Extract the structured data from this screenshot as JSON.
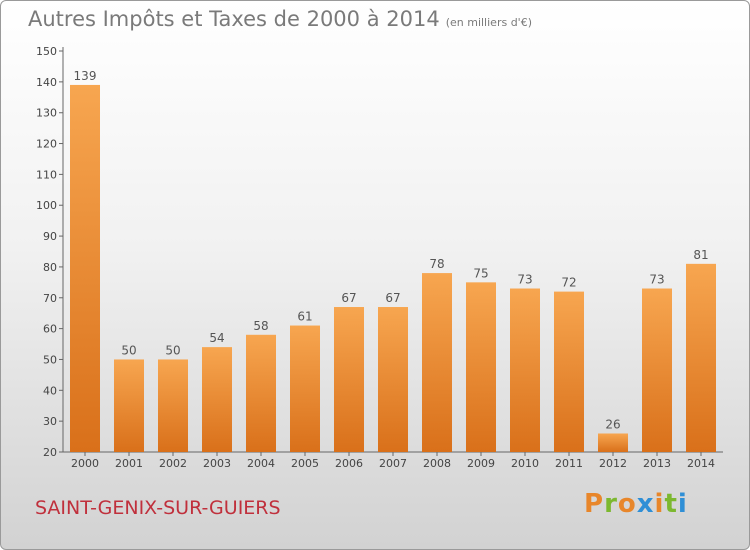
{
  "header": {
    "title": "Autres Impôts et Taxes de 2000 à 2014",
    "unit": "(en milliers d'€)"
  },
  "footer": {
    "location": "SAINT-GENIX-SUR-GUIERS",
    "logo_letters": [
      "P",
      "r",
      "o",
      "x",
      "i",
      "t",
      "i"
    ],
    "logo_colors": [
      "#e8862a",
      "#7cb82f",
      "#e8862a",
      "#2f8fd6",
      "#e8862a",
      "#7cb82f",
      "#2f8fd6"
    ]
  },
  "chart_data": {
    "type": "bar",
    "categories": [
      "2000",
      "2001",
      "2002",
      "2003",
      "2004",
      "2005",
      "2006",
      "2007",
      "2008",
      "2009",
      "2010",
      "2011",
      "2012",
      "2013",
      "2014"
    ],
    "values": [
      139,
      50,
      50,
      54,
      58,
      61,
      67,
      67,
      78,
      75,
      73,
      72,
      26,
      73,
      81
    ],
    "ylim": [
      20,
      150
    ],
    "yticks": [
      20,
      30,
      40,
      50,
      60,
      70,
      80,
      90,
      100,
      110,
      120,
      130,
      140,
      150
    ],
    "bar_color": "#f0923a",
    "grid": false,
    "data_labels": true
  }
}
